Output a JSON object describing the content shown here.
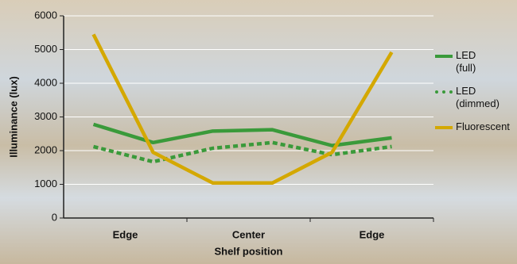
{
  "chart_data": {
    "type": "line",
    "xlabel": "Shelf position",
    "ylabel": "Illuminance (lux)",
    "x": [
      0.5,
      1.5,
      2.5,
      3.5,
      4.5,
      5.5
    ],
    "xlim": [
      0,
      6.2
    ],
    "x_labels": [
      "Edge",
      "Center",
      "Edge"
    ],
    "ylim": [
      0,
      6000
    ],
    "yticks": [
      0,
      1000,
      2000,
      3000,
      4000,
      5000,
      6000
    ],
    "grid": true,
    "series": [
      {
        "name": "LED (full)",
        "color": "#3a9a3a",
        "dash": false,
        "values": [
          2780,
          2240,
          2580,
          2620,
          2150,
          2380
        ]
      },
      {
        "name": "LED (dimmed)",
        "color": "#3a9a3a",
        "dash": true,
        "values": [
          2120,
          1670,
          2070,
          2240,
          1880,
          2120
        ]
      },
      {
        "name": "Fluorescent",
        "color": "#d4a800",
        "dash": false,
        "values": [
          5450,
          1950,
          1040,
          1040,
          1950,
          4920
        ]
      }
    ]
  }
}
